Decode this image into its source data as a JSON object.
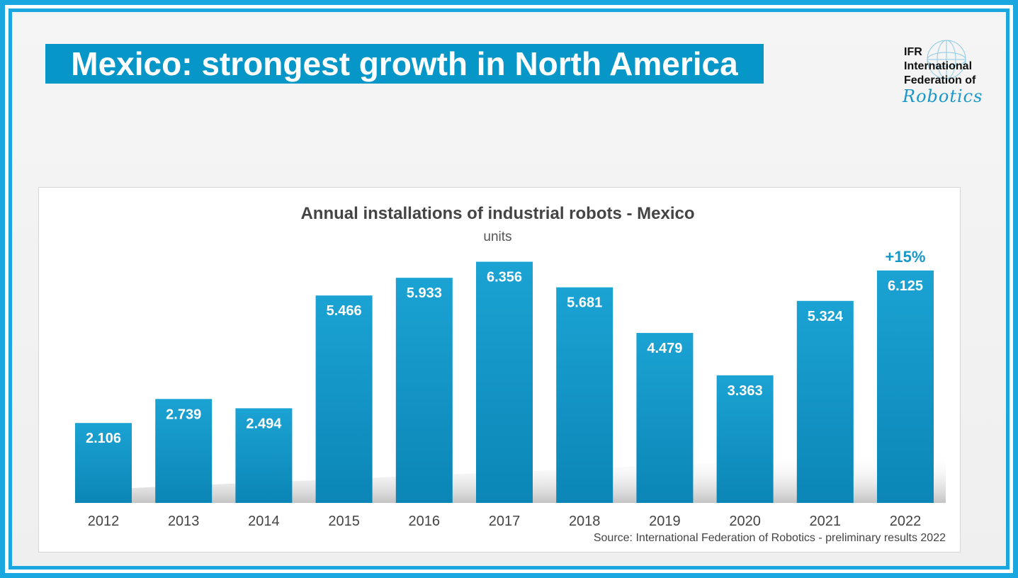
{
  "slide": {
    "title": "Mexico: strongest growth in North America",
    "logo": {
      "line1": "IFR",
      "line2": "International",
      "line3": "Federation of",
      "line4": "Robotics"
    },
    "source": "Source: International Federation of Robotics - preliminary results 2022"
  },
  "colors": {
    "frame": "#1aa7e0",
    "title_bg": "#0796c8",
    "bar": "#1899c6",
    "growth_label": "#1597c8"
  },
  "chart_data": {
    "type": "bar",
    "title": "Annual installations of industrial robots - Mexico",
    "subtitle": "units",
    "categories": [
      "2012",
      "2013",
      "2014",
      "2015",
      "2016",
      "2017",
      "2018",
      "2019",
      "2020",
      "2021",
      "2022"
    ],
    "values": [
      2.106,
      2.739,
      2.494,
      5.466,
      5.933,
      6.356,
      5.681,
      4.479,
      3.363,
      5.324,
      6.125
    ],
    "value_labels": [
      "2.106",
      "2.739",
      "2.494",
      "5.466",
      "5.933",
      "6.356",
      "5.681",
      "4.479",
      "3.363",
      "5.324",
      "6.125"
    ],
    "annotation": {
      "category": "2022",
      "text": "+15%"
    },
    "grid": false,
    "legend": "none"
  }
}
